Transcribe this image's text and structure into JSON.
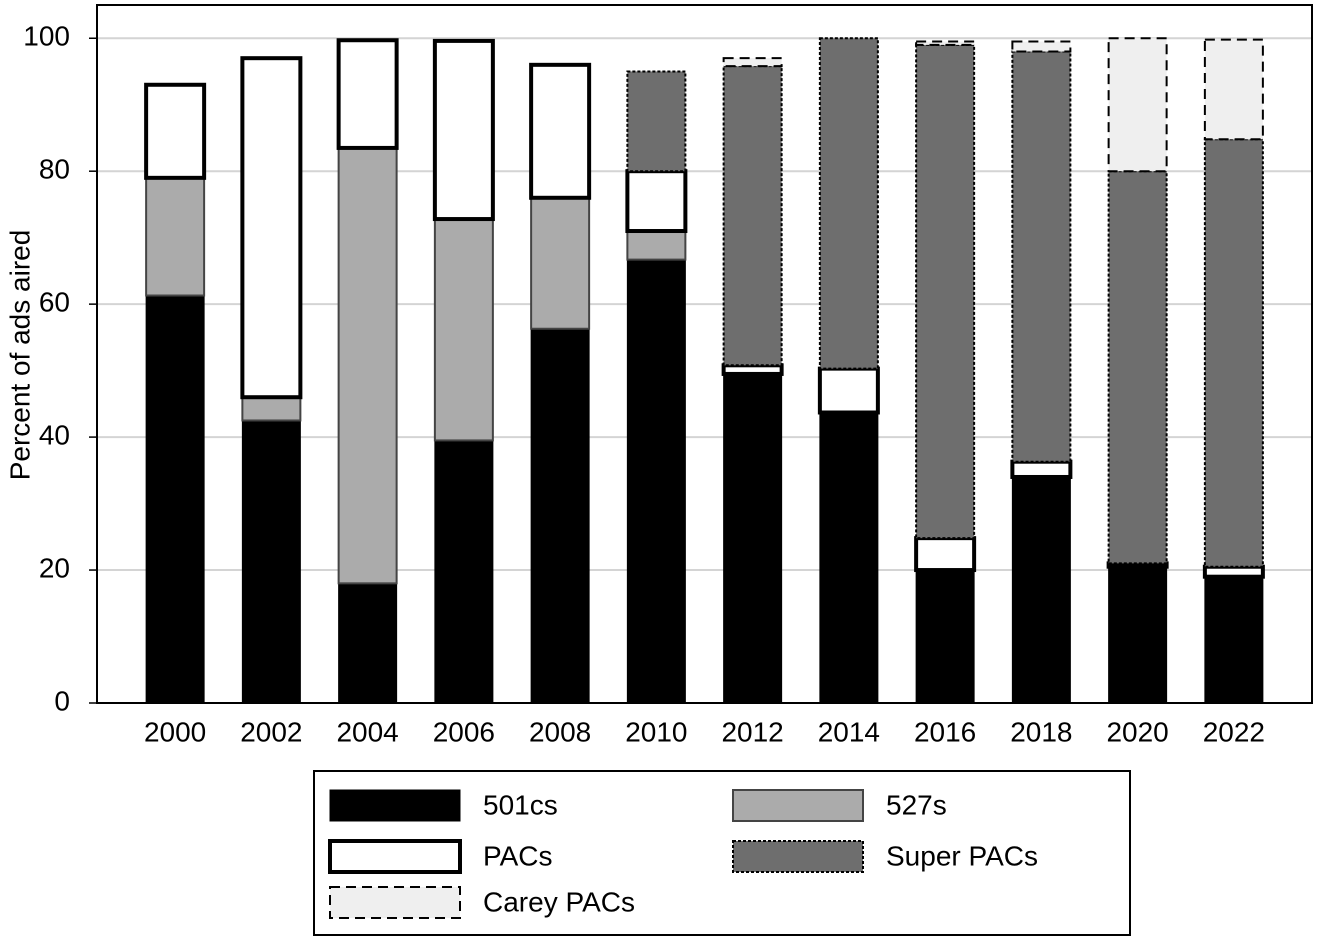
{
  "chart_data": {
    "type": "stacked-bar",
    "y_label": "Percent of ads aired",
    "categories": [
      "2000",
      "2002",
      "2004",
      "2006",
      "2008",
      "2010",
      "2012",
      "2014",
      "2016",
      "2018",
      "2020",
      "2022"
    ],
    "series": [
      {
        "name": "501cs",
        "color": "#000000",
        "values": [
          61.3,
          42.5,
          18,
          39.5,
          56.3,
          66.7,
          49.5,
          43.7,
          20,
          34,
          20.5,
          19
        ]
      },
      {
        "name": "527s",
        "color": "#ababab",
        "values": [
          17.7,
          3.5,
          65.5,
          33.3,
          19.7,
          4.3,
          0,
          0,
          0,
          0,
          0,
          0
        ]
      },
      {
        "name": "PACs",
        "color": "#ffffff",
        "values": [
          14,
          51,
          16.2,
          26.8,
          20,
          9,
          1.3,
          6.6,
          4.8,
          2.3,
          0.5,
          1.5
        ]
      },
      {
        "name": "Super PACs",
        "color": "#6e6e6e",
        "values": [
          0,
          0,
          0,
          0,
          0,
          15,
          45,
          49.7,
          74.2,
          61.7,
          59,
          64.3
        ]
      },
      {
        "name": "Carey PACs",
        "color": "#efefef",
        "values": [
          0,
          0,
          0,
          0,
          0,
          0,
          1.2,
          0,
          0.5,
          1.5,
          20,
          15
        ]
      }
    ],
    "ylim": [
      0,
      105
    ],
    "yticks": [
      0,
      20,
      40,
      60,
      80,
      100
    ],
    "grid": true
  }
}
